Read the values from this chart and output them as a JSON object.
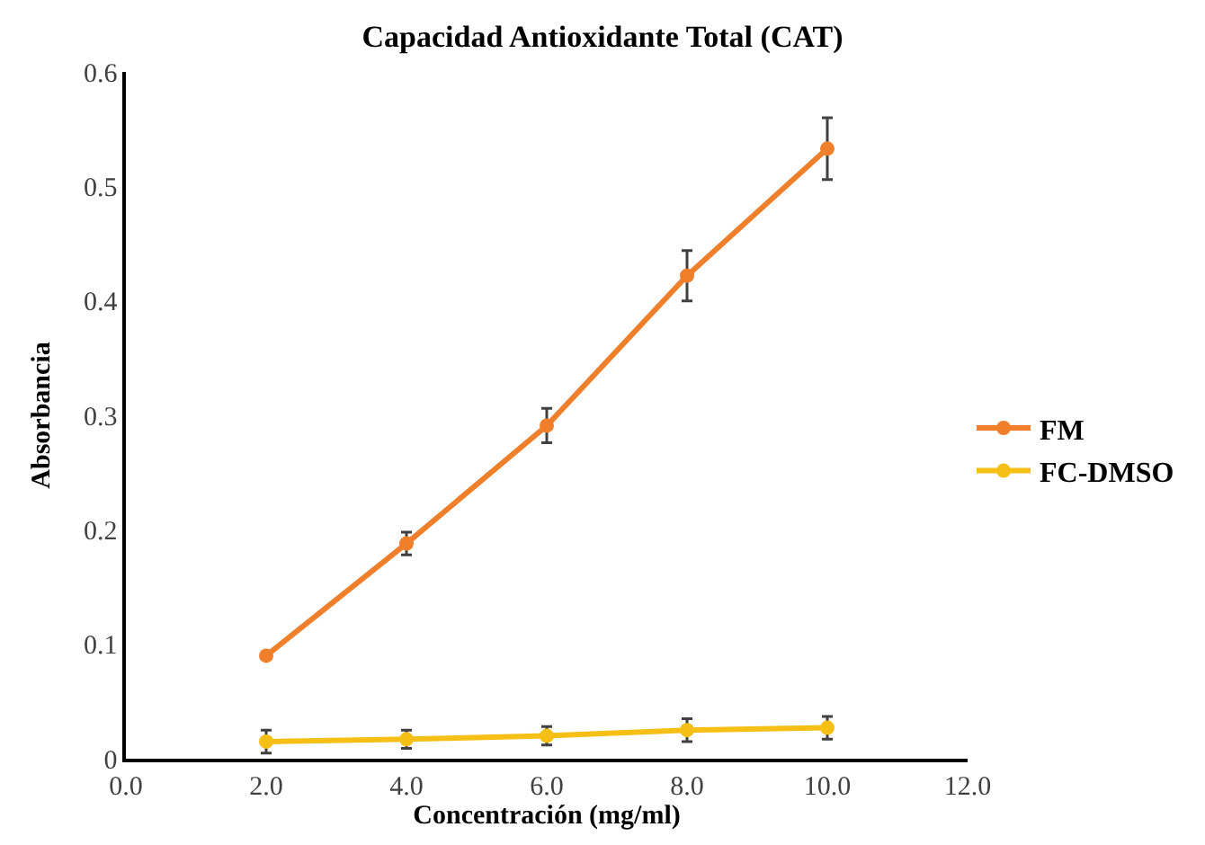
{
  "chart_data": {
    "type": "line",
    "title": "Capacidad Antioxidante Total (CAT)",
    "xlabel": "Concentración (mg/ml)",
    "ylabel": "Absorbancia",
    "x": [
      2,
      4,
      6,
      8,
      10
    ],
    "series": [
      {
        "name": "FM",
        "color": "#f07f2c",
        "values": [
          0.09,
          0.188,
          0.291,
          0.422,
          0.533
        ],
        "errors": [
          null,
          0.01,
          0.015,
          0.022,
          0.027
        ]
      },
      {
        "name": "FC-DMSO",
        "color": "#f5bf16",
        "values": [
          0.015,
          0.017,
          0.02,
          0.025,
          0.027
        ],
        "errors": [
          0.01,
          0.008,
          0.008,
          0.01,
          0.01
        ]
      }
    ],
    "xlim": [
      0,
      12
    ],
    "xticks": [
      {
        "value": 0,
        "label": "0.0"
      },
      {
        "value": 2,
        "label": "2.0"
      },
      {
        "value": 4,
        "label": "4.0"
      },
      {
        "value": 6,
        "label": "6.0"
      },
      {
        "value": 8,
        "label": "8.0"
      },
      {
        "value": 10,
        "label": "10.0"
      },
      {
        "value": 12,
        "label": "12.0"
      }
    ],
    "ylim": [
      0,
      0.6
    ],
    "yticks": [
      0,
      0.1,
      0.2,
      0.3,
      0.4,
      0.5,
      0.6
    ],
    "legend": "right",
    "marker": "circle",
    "line_style": "solid"
  }
}
